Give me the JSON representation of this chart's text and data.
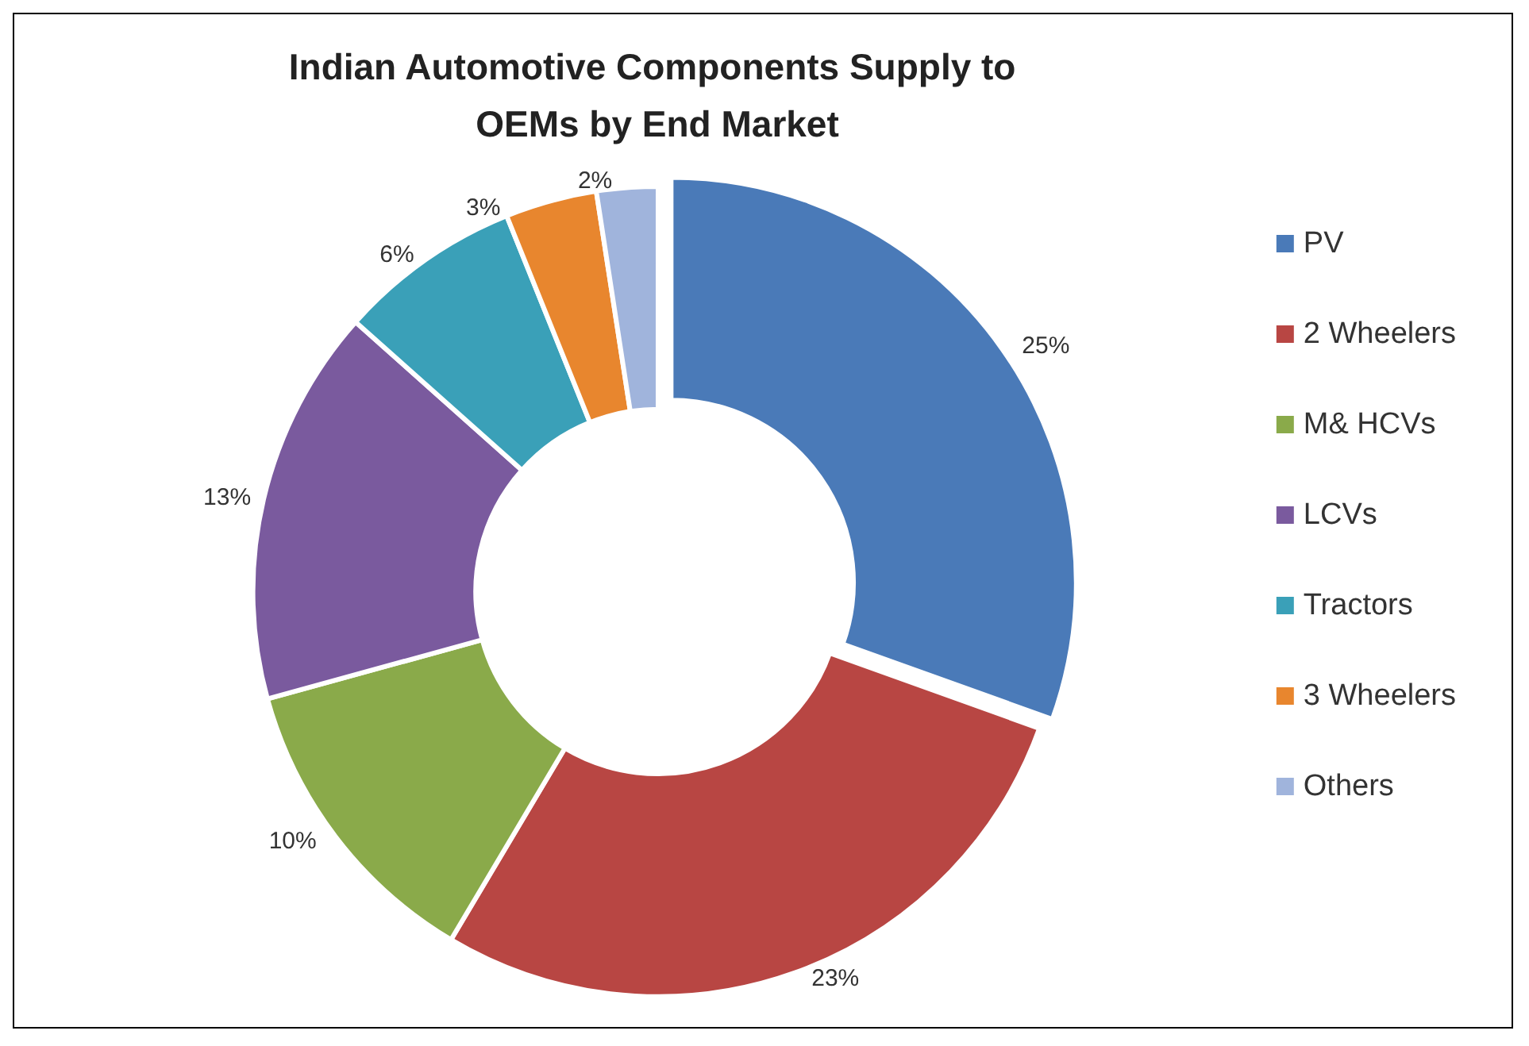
{
  "chart_data": {
    "type": "donut",
    "title": "Indian Automotive Components Supply to OEMs by End Market",
    "categories": [
      "PV",
      "2 Wheelers",
      "M& HCVs",
      "LCVs",
      "Tractors",
      "3 Wheelers",
      "Others"
    ],
    "values": [
      25,
      23,
      10,
      13,
      6,
      3,
      2
    ],
    "value_labels": [
      "25%",
      "23%",
      "10%",
      "13%",
      "6%",
      "3%",
      "2%"
    ],
    "colors": [
      "#4a7ab8",
      "#b84643",
      "#8aaa4a",
      "#7a5a9e",
      "#3aa0b8",
      "#e8862e",
      "#a0b4dc"
    ],
    "legend": "right"
  }
}
